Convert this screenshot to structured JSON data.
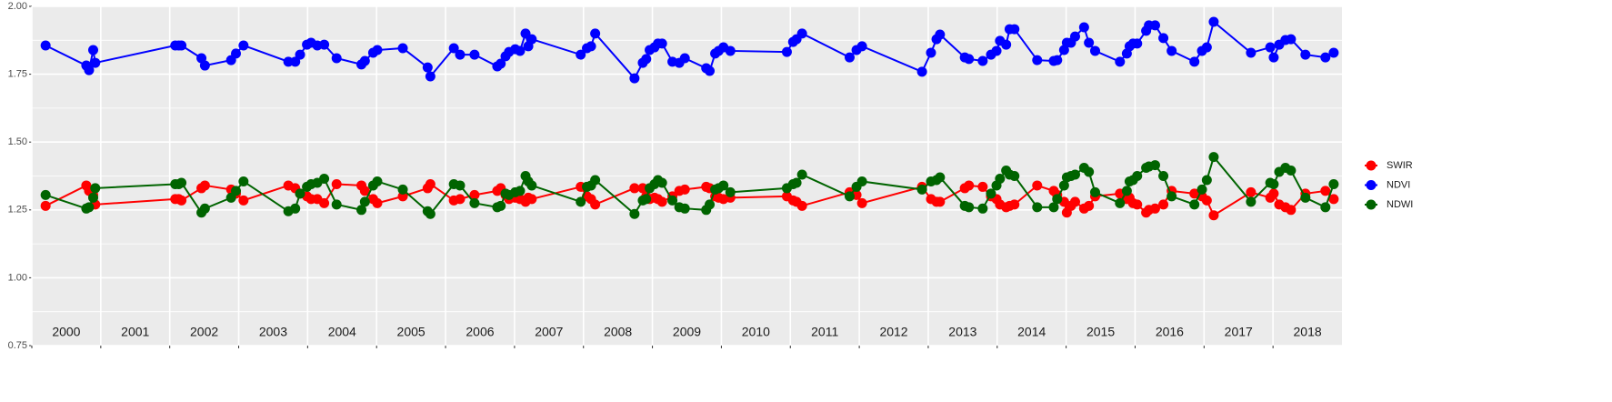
{
  "chart_data": {
    "type": "line",
    "x": [
      2000.2,
      2000.79,
      2000.83,
      2000.89,
      2000.92,
      2002.08,
      2002.13,
      2002.17,
      2002.46,
      2002.51,
      2002.89,
      2002.96,
      2003.07,
      2003.72,
      2003.82,
      2003.89,
      2003.99,
      2004.05,
      2004.14,
      2004.24,
      2004.42,
      2004.78,
      2004.83,
      2004.95,
      2005.01,
      2005.38,
      2005.74,
      2005.78,
      2006.12,
      2006.21,
      2006.42,
      2006.75,
      2006.8,
      2006.87,
      2006.92,
      2007.01,
      2007.08,
      2007.16,
      2007.2,
      2007.25,
      2007.96,
      2008.05,
      2008.11,
      2008.17,
      2008.74,
      2008.86,
      2008.91,
      2008.96,
      2009.03,
      2009.08,
      2009.14,
      2009.29,
      2009.39,
      2009.47,
      2009.78,
      2009.83,
      2009.91,
      2009.96,
      2010.03,
      2010.13,
      2010.95,
      2011.04,
      2011.09,
      2011.17,
      2011.86,
      2011.96,
      2012.04,
      2012.91,
      2013.04,
      2013.12,
      2013.17,
      2013.53,
      2013.59,
      2013.79,
      2013.91,
      2013.99,
      2014.04,
      2014.13,
      2014.18,
      2014.25,
      2014.58,
      2014.82,
      2014.87,
      2014.97,
      2015.01,
      2015.07,
      2015.13,
      2015.26,
      2015.33,
      2015.42,
      2015.78,
      2015.88,
      2015.92,
      2015.97,
      2016.03,
      2016.16,
      2016.2,
      2016.29,
      2016.41,
      2016.53,
      2016.86,
      2016.97,
      2017.04,
      2017.14,
      2017.68,
      2017.96,
      2018.01,
      2018.09,
      2018.18,
      2018.26,
      2018.47,
      2018.76,
      2018.88
    ],
    "series": [
      {
        "name": "SWIR",
        "color": "#ff0000",
        "values": [
          1.265,
          1.34,
          1.32,
          1.305,
          1.27,
          1.29,
          1.29,
          1.285,
          1.33,
          1.34,
          1.325,
          1.31,
          1.285,
          1.34,
          1.33,
          1.31,
          1.3,
          1.29,
          1.29,
          1.275,
          1.345,
          1.34,
          1.32,
          1.29,
          1.275,
          1.3,
          1.33,
          1.345,
          1.285,
          1.29,
          1.305,
          1.32,
          1.33,
          1.305,
          1.29,
          1.295,
          1.29,
          1.28,
          1.295,
          1.29,
          1.335,
          1.3,
          1.29,
          1.27,
          1.33,
          1.33,
          1.3,
          1.29,
          1.295,
          1.29,
          1.28,
          1.3,
          1.32,
          1.325,
          1.335,
          1.33,
          1.3,
          1.295,
          1.29,
          1.295,
          1.3,
          1.285,
          1.28,
          1.265,
          1.315,
          1.305,
          1.275,
          1.335,
          1.29,
          1.28,
          1.28,
          1.33,
          1.34,
          1.335,
          1.3,
          1.29,
          1.27,
          1.26,
          1.265,
          1.27,
          1.34,
          1.32,
          1.305,
          1.28,
          1.24,
          1.265,
          1.28,
          1.255,
          1.265,
          1.3,
          1.31,
          1.29,
          1.295,
          1.275,
          1.27,
          1.24,
          1.25,
          1.255,
          1.27,
          1.32,
          1.31,
          1.3,
          1.285,
          1.23,
          1.315,
          1.295,
          1.31,
          1.27,
          1.26,
          1.25,
          1.31,
          1.32,
          1.29
        ]
      },
      {
        "name": "NDVI",
        "color": "#0000ff",
        "values": [
          1.856,
          1.782,
          1.765,
          1.839,
          1.792,
          1.856,
          1.856,
          1.856,
          1.809,
          1.782,
          1.802,
          1.826,
          1.856,
          1.796,
          1.796,
          1.822,
          1.859,
          1.866,
          1.856,
          1.859,
          1.809,
          1.786,
          1.799,
          1.829,
          1.839,
          1.846,
          1.775,
          1.742,
          1.846,
          1.822,
          1.822,
          1.779,
          1.789,
          1.816,
          1.832,
          1.842,
          1.836,
          1.9,
          1.853,
          1.879,
          1.822,
          1.846,
          1.853,
          1.9,
          1.735,
          1.792,
          1.806,
          1.839,
          1.849,
          1.863,
          1.863,
          1.796,
          1.792,
          1.809,
          1.772,
          1.762,
          1.826,
          1.836,
          1.849,
          1.836,
          1.832,
          1.869,
          1.879,
          1.9,
          1.812,
          1.839,
          1.853,
          1.759,
          1.829,
          1.879,
          1.896,
          1.812,
          1.806,
          1.799,
          1.822,
          1.836,
          1.873,
          1.859,
          1.916,
          1.916,
          1.802,
          1.799,
          1.802,
          1.839,
          1.866,
          1.866,
          1.889,
          1.923,
          1.866,
          1.836,
          1.796,
          1.826,
          1.853,
          1.863,
          1.863,
          1.91,
          1.93,
          1.93,
          1.883,
          1.836,
          1.796,
          1.836,
          1.849,
          1.943,
          1.829,
          1.849,
          1.812,
          1.859,
          1.876,
          1.879,
          1.822,
          1.812,
          1.829
        ]
      },
      {
        "name": "NDWI",
        "color": "#006400",
        "values": [
          1.305,
          1.255,
          1.26,
          1.295,
          1.33,
          1.345,
          1.345,
          1.35,
          1.24,
          1.255,
          1.295,
          1.32,
          1.355,
          1.245,
          1.255,
          1.31,
          1.335,
          1.345,
          1.35,
          1.365,
          1.27,
          1.25,
          1.28,
          1.34,
          1.355,
          1.325,
          1.245,
          1.235,
          1.345,
          1.34,
          1.275,
          1.26,
          1.265,
          1.31,
          1.305,
          1.315,
          1.32,
          1.375,
          1.355,
          1.34,
          1.28,
          1.335,
          1.34,
          1.36,
          1.235,
          1.285,
          1.29,
          1.33,
          1.345,
          1.36,
          1.35,
          1.285,
          1.26,
          1.255,
          1.25,
          1.27,
          1.325,
          1.33,
          1.34,
          1.315,
          1.33,
          1.345,
          1.35,
          1.38,
          1.3,
          1.335,
          1.355,
          1.325,
          1.355,
          1.36,
          1.37,
          1.265,
          1.26,
          1.255,
          1.31,
          1.34,
          1.365,
          1.395,
          1.38,
          1.375,
          1.26,
          1.26,
          1.29,
          1.34,
          1.37,
          1.375,
          1.38,
          1.405,
          1.39,
          1.315,
          1.275,
          1.32,
          1.355,
          1.36,
          1.375,
          1.405,
          1.41,
          1.415,
          1.375,
          1.3,
          1.27,
          1.325,
          1.36,
          1.445,
          1.28,
          1.35,
          1.345,
          1.39,
          1.405,
          1.395,
          1.295,
          1.26,
          1.345
        ]
      }
    ],
    "xlim": [
      2000,
      2019
    ],
    "xticks": [
      {
        "value": 2000,
        "label": "2000"
      },
      {
        "value": 2001,
        "label": "2001"
      },
      {
        "value": 2002,
        "label": "2002"
      },
      {
        "value": 2003,
        "label": "2003"
      },
      {
        "value": 2004,
        "label": "2004"
      },
      {
        "value": 2005,
        "label": "2005"
      },
      {
        "value": 2006,
        "label": "2006"
      },
      {
        "value": 2007,
        "label": "2007"
      },
      {
        "value": 2008,
        "label": "2008"
      },
      {
        "value": 2009,
        "label": "2009"
      },
      {
        "value": 2010,
        "label": "2010"
      },
      {
        "value": 2011,
        "label": "2011"
      },
      {
        "value": 2012,
        "label": "2012"
      },
      {
        "value": 2013,
        "label": "2013"
      },
      {
        "value": 2014,
        "label": "2014"
      },
      {
        "value": 2015,
        "label": "2015"
      },
      {
        "value": 2016,
        "label": "2016"
      },
      {
        "value": 2017,
        "label": "2017"
      },
      {
        "value": 2018,
        "label": "2018"
      }
    ],
    "ylim": [
      0.75,
      2.0
    ],
    "yticks": [
      {
        "value": 0.75,
        "label": "0.75"
      },
      {
        "value": 1.0,
        "label": "1.00"
      },
      {
        "value": 1.25,
        "label": "1.25"
      },
      {
        "value": 1.5,
        "label": "1.50"
      },
      {
        "value": 1.75,
        "label": "1.75"
      },
      {
        "value": 2.0,
        "label": "2.00"
      }
    ],
    "yminor": [
      0.875,
      1.125,
      1.375,
      1.625,
      1.875
    ],
    "grid": true,
    "legend": "right"
  }
}
